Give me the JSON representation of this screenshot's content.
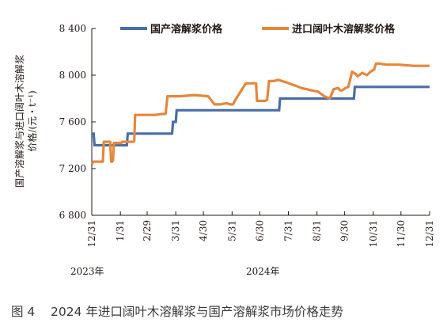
{
  "chart_data": {
    "type": "line",
    "ylabel_lines": [
      "国产溶解浆与进口阔叶木溶解浆",
      "价格/(元・t⁻¹)"
    ],
    "y_ticks": [
      "6 800",
      "7 200",
      "7 600",
      "8 000",
      "8 400"
    ],
    "y_tick_values": [
      6800,
      7200,
      7600,
      8000,
      8400
    ],
    "ylim": [
      6800,
      8400
    ],
    "x_tick_labels": [
      "12/31",
      "1/31",
      "2/29",
      "3/31",
      "4/30",
      "5/31",
      "6/30",
      "7/31",
      "8/31",
      "9/30",
      "10/31",
      "11/30",
      "12/31"
    ],
    "x_tick_dates": [
      "2023-12-31",
      "2024-01-31",
      "2024-02-29",
      "2024-03-31",
      "2024-04-30",
      "2024-05-31",
      "2024-06-30",
      "2024-07-31",
      "2024-08-31",
      "2024-09-30",
      "2024-10-31",
      "2024-11-30",
      "2024-12-31"
    ],
    "xlim": [
      "2023-12-31",
      "2024-12-31"
    ],
    "year_labels": [
      "2023年",
      "2024年"
    ],
    "legend_position": "top",
    "grid": false,
    "series": [
      {
        "name": "国产溶解浆价格",
        "color": "#4a6da8",
        "x": [
          "2023-12-31",
          "2024-01-02",
          "2024-01-03",
          "2024-02-07",
          "2024-02-08",
          "2024-03-27",
          "2024-03-28",
          "2024-03-31",
          "2024-04-01",
          "2024-07-21",
          "2024-07-22",
          "2024-10-10",
          "2024-10-11",
          "2024-12-31"
        ],
        "values": [
          7500,
          7500,
          7400,
          7400,
          7500,
          7500,
          7600,
          7600,
          7700,
          7700,
          7800,
          7800,
          7900,
          7900
        ]
      },
      {
        "name": "进口阔叶木溶解浆价格",
        "color": "#e6873a",
        "x": [
          "2023-12-31",
          "2024-01-02",
          "2024-01-12",
          "2024-01-13",
          "2024-01-20",
          "2024-01-21",
          "2024-01-22",
          "2024-01-23",
          "2024-01-24",
          "2024-01-31",
          "2024-02-01",
          "2024-02-02",
          "2024-02-14",
          "2024-02-15",
          "2024-02-16",
          "2024-02-18",
          "2024-03-05",
          "2024-03-08",
          "2024-03-20",
          "2024-03-22",
          "2024-04-05",
          "2024-04-20",
          "2024-05-05",
          "2024-05-07",
          "2024-05-12",
          "2024-05-18",
          "2024-05-25",
          "2024-05-29",
          "2024-06-01",
          "2024-06-03",
          "2024-06-14",
          "2024-06-15",
          "2024-06-20",
          "2024-06-26",
          "2024-06-27",
          "2024-07-06",
          "2024-07-08",
          "2024-07-10",
          "2024-07-15",
          "2024-07-20",
          "2024-07-28",
          "2024-08-04",
          "2024-08-08",
          "2024-08-14",
          "2024-08-20",
          "2024-08-25",
          "2024-09-01",
          "2024-09-08",
          "2024-09-14",
          "2024-09-18",
          "2024-09-23",
          "2024-09-25",
          "2024-09-27",
          "2024-10-01",
          "2024-10-04",
          "2024-10-08",
          "2024-10-12",
          "2024-10-14",
          "2024-10-19",
          "2024-10-24",
          "2024-10-28",
          "2024-11-01",
          "2024-11-03",
          "2024-11-07",
          "2024-11-14",
          "2024-11-28",
          "2024-12-14",
          "2024-12-31"
        ],
        "values": [
          7240,
          7260,
          7260,
          7430,
          7430,
          7260,
          7260,
          7270,
          7420,
          7420,
          7420,
          7430,
          7430,
          7440,
          7660,
          7660,
          7660,
          7660,
          7670,
          7820,
          7820,
          7830,
          7820,
          7800,
          7750,
          7750,
          7760,
          7750,
          7750,
          7780,
          7920,
          7930,
          7930,
          7930,
          7780,
          7780,
          7790,
          7950,
          7950,
          7960,
          7940,
          7920,
          7910,
          7890,
          7880,
          7870,
          7860,
          7820,
          7800,
          7880,
          7890,
          7870,
          7870,
          7890,
          7900,
          8030,
          8010,
          7990,
          8020,
          8000,
          8030,
          8050,
          8100,
          8100,
          8090,
          8090,
          8080,
          8080
        ]
      }
    ]
  },
  "caption": "图 4    2024 年进口阔叶木溶解浆与国产溶解浆市场价格走势"
}
